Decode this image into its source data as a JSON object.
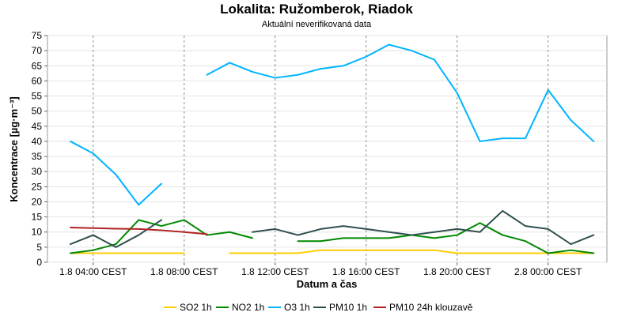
{
  "chart_data": {
    "type": "line",
    "title": "Lokalita: Ružomberok, Riadok",
    "subtitle": "Aktuální neverifikovaná data",
    "xlabel": "Datum a čas",
    "ylabel": "Koncentrace [µg·m⁻³]",
    "ylim": [
      0,
      75
    ],
    "yticks": [
      0,
      5,
      10,
      15,
      20,
      25,
      30,
      35,
      40,
      45,
      50,
      55,
      60,
      65,
      70,
      75
    ],
    "x": [
      "1.8 03:00",
      "1.8 04:00",
      "1.8 05:00",
      "1.8 06:00",
      "1.8 07:00",
      "1.8 08:00",
      "1.8 09:00",
      "1.8 10:00",
      "1.8 11:00",
      "1.8 12:00",
      "1.8 13:00",
      "1.8 14:00",
      "1.8 15:00",
      "1.8 16:00",
      "1.8 17:00",
      "1.8 18:00",
      "1.8 19:00",
      "1.8 20:00",
      "1.8 21:00",
      "1.8 22:00",
      "1.8 23:00",
      "2.8 00:00",
      "2.8 01:00",
      "2.8 02:00"
    ],
    "xtick_labels": [
      {
        "index": 1,
        "label": "1.8 04:00 CEST"
      },
      {
        "index": 5,
        "label": "1.8 08:00 CEST"
      },
      {
        "index": 9,
        "label": "1.8 12:00 CEST"
      },
      {
        "index": 13,
        "label": "1.8 16:00 CEST"
      },
      {
        "index": 17,
        "label": "1.8 20:00 CEST"
      },
      {
        "index": 21,
        "label": "2.8 00:00 CEST"
      }
    ],
    "grid": true,
    "legend_position": "bottom",
    "series": [
      {
        "name": "SO2 1h",
        "color": "#ffcc00",
        "values": [
          3,
          3,
          3,
          3,
          3,
          3,
          null,
          3,
          3,
          3,
          3,
          4,
          4,
          4,
          4,
          4,
          4,
          3,
          3,
          3,
          3,
          3,
          3,
          3
        ]
      },
      {
        "name": "NO2 1h",
        "color": "#008800",
        "values": [
          3,
          4,
          6,
          14,
          12,
          14,
          9,
          10,
          8,
          null,
          7,
          7,
          8,
          8,
          8,
          9,
          8,
          9,
          13,
          9,
          7,
          3,
          4,
          3
        ]
      },
      {
        "name": "O3 1h",
        "color": "#00b4ff",
        "values": [
          40,
          36,
          29,
          19,
          26,
          null,
          62,
          66,
          63,
          61,
          62,
          64,
          65,
          68,
          72,
          70,
          67,
          56,
          40,
          41,
          41,
          57,
          47,
          40
        ]
      },
      {
        "name": "PM10 1h",
        "color": "#2f4f4f",
        "values": [
          6,
          9,
          5,
          9,
          14,
          null,
          null,
          null,
          10,
          11,
          9,
          11,
          12,
          11,
          10,
          9,
          10,
          11,
          10,
          17,
          12,
          11,
          6,
          9
        ]
      },
      {
        "name": "PM10 24h klouzavě",
        "color": "#b22222",
        "values": [
          11.5,
          11.3,
          11.1,
          11,
          10.6,
          10,
          9.3,
          null,
          null,
          null,
          null,
          null,
          null,
          null,
          null,
          null,
          null,
          null,
          null,
          null,
          null,
          null,
          null,
          null
        ]
      }
    ]
  }
}
